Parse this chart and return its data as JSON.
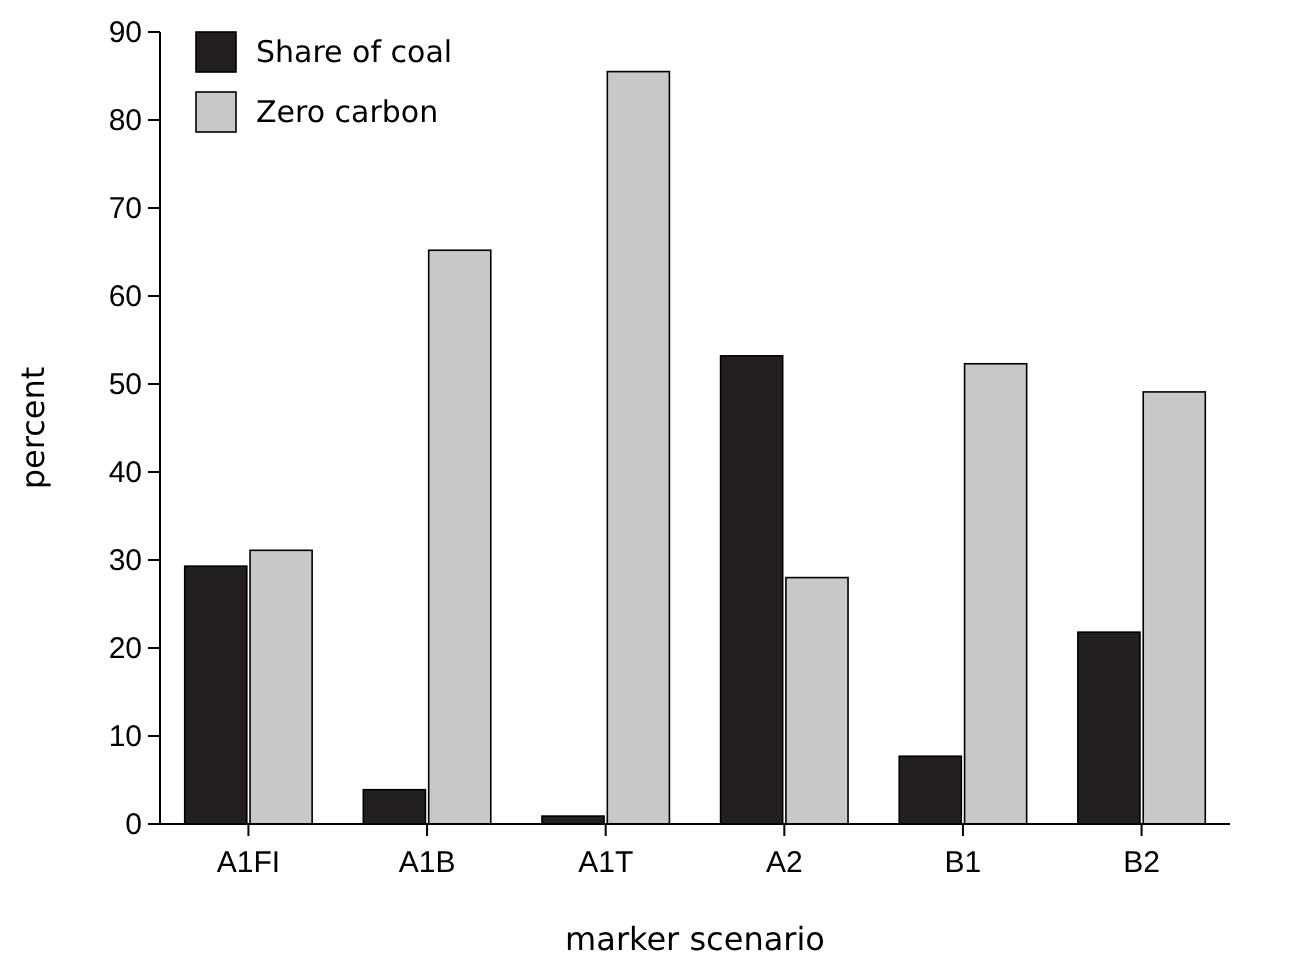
{
  "chart_data": {
    "type": "bar",
    "xlabel": "marker scenario",
    "ylabel": "percent",
    "categories": [
      "A1FI",
      "A1B",
      "A1T",
      "A2",
      "B1",
      "B2"
    ],
    "series": [
      {
        "name": "Share of coal",
        "color": "#231f20",
        "values": [
          29.3,
          3.9,
          0.9,
          53.2,
          7.7,
          21.8
        ]
      },
      {
        "name": "Zero carbon",
        "color": "#c8c8c8",
        "values": [
          31.1,
          65.2,
          85.5,
          28,
          52.3,
          49.1
        ]
      }
    ],
    "ylim": [
      0,
      90
    ],
    "yticks": [
      0,
      10,
      20,
      30,
      40,
      50,
      60,
      70,
      80,
      90
    ],
    "grid": false,
    "legend": "top left"
  }
}
